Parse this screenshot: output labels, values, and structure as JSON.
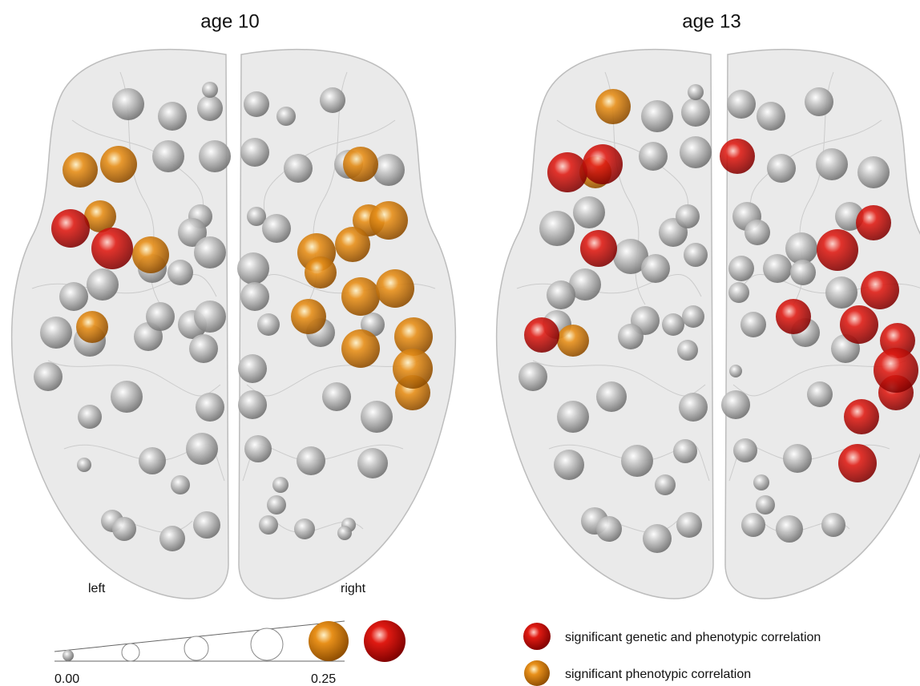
{
  "panels": [
    {
      "title": "age 10",
      "side_labels": [
        "left",
        "right"
      ]
    },
    {
      "title": "age 13"
    }
  ],
  "scale": {
    "labels": [
      "0.00",
      "0.25"
    ]
  },
  "legend": [
    {
      "label": "significant genetic and phenotypic correlation"
    },
    {
      "label": "significant phenotypic correlation"
    }
  ]
}
